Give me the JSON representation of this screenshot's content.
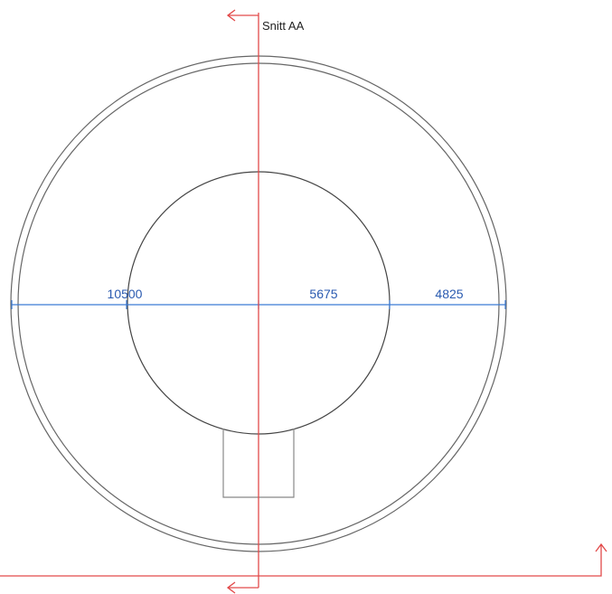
{
  "section_label": "Snitt AA",
  "dimensions": [
    "10500",
    "5675",
    "4825"
  ]
}
